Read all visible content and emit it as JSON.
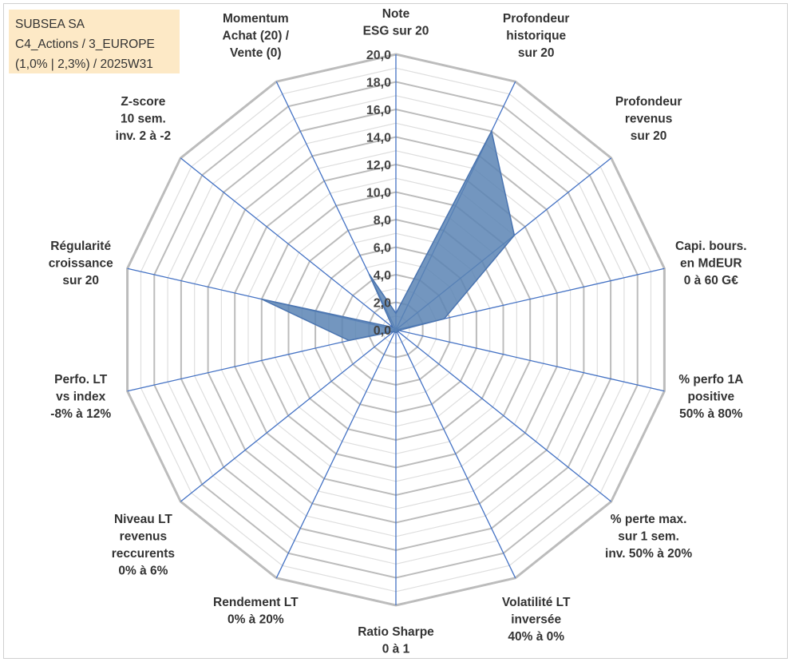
{
  "info_box": {
    "line1": "SUBSEA SA",
    "line2": "C4_Actions / 3_EUROPE",
    "line3": "(1,0% | 2,3%) / 2025W31"
  },
  "colors": {
    "grid": "#bfbfbf",
    "spoke": "#4472c4",
    "fill": "#5b84b4",
    "stroke": "#4a74b0",
    "info_bg": "#fde9c6"
  },
  "chart_data": {
    "type": "radar",
    "rmin": 0,
    "rmax": 20,
    "tick_step": 2,
    "tick_labels": [
      "0,0",
      "2,0",
      "4,0",
      "6,0",
      "8,0",
      "10,0",
      "12,0",
      "14,0",
      "16,0",
      "18,0",
      "20,0"
    ],
    "axes": [
      {
        "label": [
          "Note",
          "ESG sur 20"
        ],
        "value": 1.2
      },
      {
        "label": [
          "Profondeur",
          "historique",
          "sur 20"
        ],
        "value": 16.0
      },
      {
        "label": [
          "Profondeur",
          "revenus",
          "sur 20"
        ],
        "value": 11.0
      },
      {
        "label": [
          "Capi. bours.",
          "en MdEUR",
          "0 à 60 G€"
        ],
        "value": 3.6
      },
      {
        "label": [
          "% perfo 1A",
          "positive",
          "50% à 80%"
        ],
        "value": 0.2
      },
      {
        "label": [
          "% perte max.",
          "sur 1 sem.",
          "inv. 50% à 20%"
        ],
        "value": 0.2
      },
      {
        "label": [
          "Volatilité LT",
          "inversée",
          "40% à 0%"
        ],
        "value": 0.2
      },
      {
        "label": [
          "Ratio Sharpe",
          "0 à 1"
        ],
        "value": 0.2
      },
      {
        "label": [
          "Rendement LT",
          "0% à 20%"
        ],
        "value": 0.2
      },
      {
        "label": [
          "Niveau LT",
          "revenus",
          "reccurents",
          "0% à 6%"
        ],
        "value": 0.2
      },
      {
        "label": [
          "Perfo. LT",
          "vs index",
          "-8% à 12%"
        ],
        "value": 3.5
      },
      {
        "label": [
          "Régularité",
          "croissance",
          "sur 20"
        ],
        "value": 10.0
      },
      {
        "label": [
          "Z-score",
          "10 sem.",
          "inv. 2 à -2"
        ],
        "value": 0.3
      },
      {
        "label": [
          "Momentum",
          "Achat (20) /",
          "Vente (0)"
        ],
        "value": 4.5
      }
    ]
  }
}
